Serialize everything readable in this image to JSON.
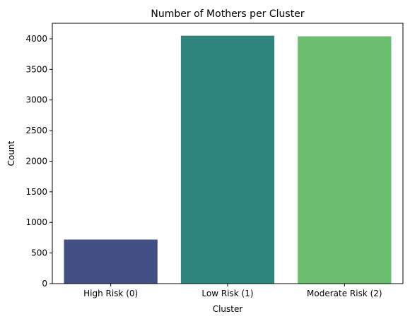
{
  "chart_data": {
    "type": "bar",
    "title": "Number of Mothers per Cluster",
    "xlabel": "Cluster",
    "ylabel": "Count",
    "categories": [
      "High Risk (0)",
      "Low Risk (1)",
      "Moderate Risk (2)"
    ],
    "values": [
      720,
      4050,
      4040
    ],
    "colors": [
      "#424f85",
      "#2e857d",
      "#6abe6d"
    ],
    "ylim": [
      0,
      4253
    ],
    "yticks": [
      0,
      500,
      1000,
      1500,
      2000,
      2500,
      3000,
      3500,
      4000
    ],
    "ytick_labels": [
      "0",
      "500",
      "1000",
      "1500",
      "2000",
      "2500",
      "3000",
      "3500",
      "4000"
    ],
    "grid": false,
    "legend": "none"
  }
}
